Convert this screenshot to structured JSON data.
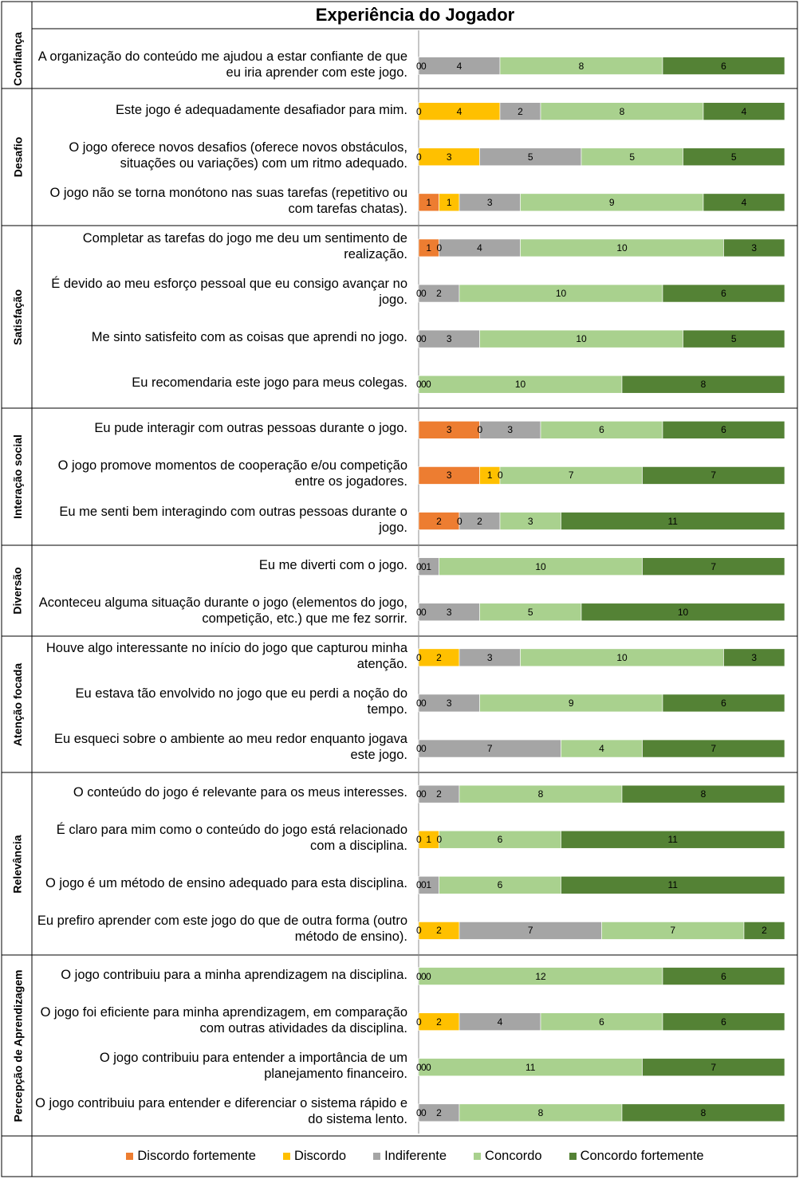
{
  "chart_data": {
    "type": "bar",
    "stacked": true,
    "orientation": "horizontal",
    "title": "Experiência do Jogador",
    "legend": {
      "position": "bottom"
    },
    "series": [
      {
        "name": "Discordo fortemente",
        "color": "#ED7D31"
      },
      {
        "name": "Discordo",
        "color": "#FFC000"
      },
      {
        "name": "Indiferente",
        "color": "#A5A5A5"
      },
      {
        "name": "Concordo",
        "color": "#A9D18E"
      },
      {
        "name": "Concordo fortemente",
        "color": "#548235"
      }
    ],
    "groups": [
      {
        "category": "Confiança",
        "items": [
          {
            "text": "A organização do conteúdo me ajudou a estar confiante de que eu iria aprender com este jogo.",
            "values": [
              0,
              0,
              4,
              8,
              6
            ]
          }
        ]
      },
      {
        "category": "Desafio",
        "items": [
          {
            "text": "Este jogo é adequadamente desafiador para mim.",
            "values": [
              0,
              4,
              2,
              8,
              4
            ]
          },
          {
            "text": "O jogo oferece novos desafios (oferece novos obstáculos, situações ou variações) com um ritmo adequado.",
            "values": [
              0,
              3,
              5,
              5,
              5
            ]
          },
          {
            "text": "O jogo não se torna monótono nas suas tarefas (repetitivo ou com tarefas chatas).",
            "values": [
              1,
              1,
              3,
              9,
              4
            ]
          }
        ]
      },
      {
        "category": "Satisfação",
        "items": [
          {
            "text": "Completar as tarefas do jogo me deu um sentimento de realização.",
            "values": [
              1,
              0,
              4,
              10,
              3
            ]
          },
          {
            "text": "É devido ao meu esforço pessoal que eu consigo avançar no jogo.",
            "values": [
              0,
              0,
              2,
              10,
              6
            ]
          },
          {
            "text": "Me sinto satisfeito com as coisas que aprendi no jogo.",
            "values": [
              0,
              0,
              3,
              10,
              5
            ]
          },
          {
            "text": "Eu recomendaria este jogo para meus colegas.",
            "values": [
              0,
              0,
              0,
              10,
              8
            ]
          }
        ]
      },
      {
        "category": "Interação social",
        "items": [
          {
            "text": "Eu pude interagir com outras pessoas durante o jogo.",
            "values": [
              3,
              0,
              3,
              6,
              6
            ]
          },
          {
            "text": "O jogo promove momentos de cooperação e/ou competição entre os jogadores.",
            "values": [
              3,
              1,
              0,
              7,
              7
            ]
          },
          {
            "text": "Eu me senti bem interagindo com outras pessoas durante o jogo.",
            "values": [
              2,
              0,
              2,
              3,
              11
            ]
          }
        ]
      },
      {
        "category": "Diversão",
        "items": [
          {
            "text": "Eu me diverti com o jogo.",
            "values": [
              0,
              0,
              1,
              10,
              7
            ]
          },
          {
            "text": "Aconteceu alguma situação durante o jogo (elementos do jogo, competição, etc.) que me fez sorrir.",
            "values": [
              0,
              0,
              3,
              5,
              10
            ]
          }
        ]
      },
      {
        "category": "Atenção focada",
        "items": [
          {
            "text": "Houve algo interessante no início do jogo que capturou minha atenção.",
            "values": [
              0,
              2,
              3,
              10,
              3
            ]
          },
          {
            "text": "Eu estava tão envolvido no jogo que eu perdi a noção do tempo.",
            "values": [
              0,
              0,
              3,
              9,
              6
            ]
          },
          {
            "text": "Eu esqueci sobre o ambiente ao meu redor enquanto jogava este jogo.",
            "values": [
              0,
              0,
              7,
              4,
              7
            ]
          }
        ]
      },
      {
        "category": "Relevância",
        "items": [
          {
            "text": "O conteúdo do jogo é relevante para os meus interesses.",
            "values": [
              0,
              0,
              2,
              8,
              8
            ]
          },
          {
            "text": "É claro para mim como o conteúdo do jogo está relacionado com a disciplina.",
            "values": [
              0,
              1,
              0,
              6,
              11
            ]
          },
          {
            "text": "O jogo é um método de ensino adequado para esta disciplina.",
            "values": [
              0,
              0,
              1,
              6,
              11
            ]
          },
          {
            "text": "Eu prefiro aprender com este jogo do que de outra forma (outro método de ensino).",
            "values": [
              0,
              2,
              7,
              7,
              2
            ]
          }
        ]
      },
      {
        "category": "Percepção de Aprendizagem",
        "items": [
          {
            "text": "O jogo contribuiu para a minha aprendizagem na disciplina.",
            "values": [
              0,
              0,
              0,
              12,
              6
            ]
          },
          {
            "text": "O jogo foi eficiente para minha aprendizagem, em comparação com outras atividades da disciplina.",
            "values": [
              0,
              2,
              4,
              6,
              6
            ]
          },
          {
            "text": "O jogo contribuiu para entender a importância de um planejamento financeiro.",
            "values": [
              0,
              0,
              0,
              11,
              7
            ]
          },
          {
            "text": "O jogo contribuiu para entender e diferenciar o sistema rápido e do sistema lento.",
            "values": [
              0,
              0,
              2,
              8,
              8
            ]
          }
        ]
      }
    ]
  }
}
